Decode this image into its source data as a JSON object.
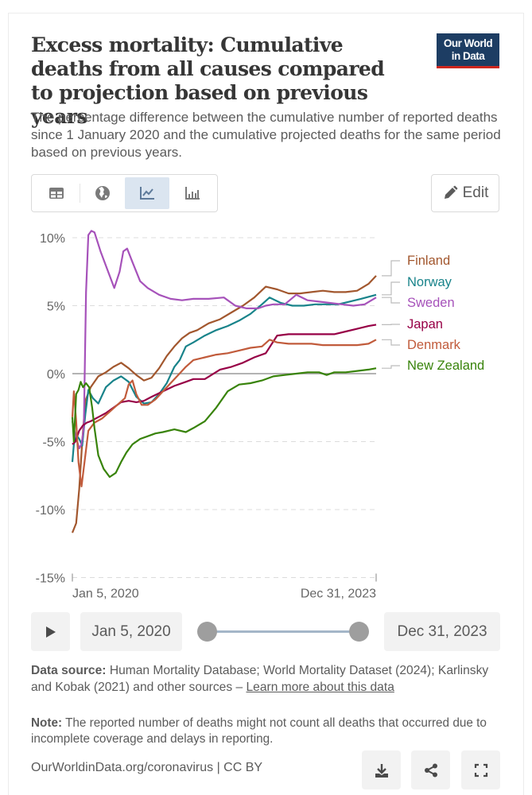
{
  "header": {
    "title": "Excess mortality: Cumulative deaths from all causes compared to projection based on previous years",
    "subtitle": "The percentage difference between the cumulative number of reported deaths since 1 January 2020 and the cumulative projected deaths for the same period based on previous years.",
    "logo_line1": "Our World",
    "logo_line2": "in Data"
  },
  "toolbar": {
    "tabs": [
      {
        "name": "table",
        "icon": "table-icon",
        "active": false
      },
      {
        "name": "map",
        "icon": "globe-icon",
        "active": false
      },
      {
        "name": "line-chart",
        "icon": "line-chart-icon",
        "active": true
      },
      {
        "name": "bar-chart",
        "icon": "bar-chart-icon",
        "active": false
      }
    ],
    "edit_label": "Edit"
  },
  "chart_data": {
    "type": "line",
    "title": "Excess mortality: Cumulative deaths from all causes compared to projection based on previous years",
    "xlabel": "",
    "ylabel": "",
    "x_tick_labels": [
      "Jan 5, 2020",
      "Dec 31, 2023"
    ],
    "x_range_years": [
      2020.01,
      2024.0
    ],
    "y_ticks": [
      -15,
      -10,
      -5,
      0,
      5,
      10
    ],
    "y_tick_labels": [
      "-15%",
      "-10%",
      "-5%",
      "0%",
      "5%",
      "10%"
    ],
    "ylim": [
      -15,
      10.5
    ],
    "grid": "horizontal dashed",
    "legend": "right",
    "series": [
      {
        "name": "Finland",
        "color": "#a2572e",
        "x": [
          2020.01,
          2020.06,
          2020.1,
          2020.14,
          2020.18,
          2020.25,
          2020.35,
          2020.45,
          2020.55,
          2020.65,
          2020.75,
          2020.85,
          2020.95,
          2021.05,
          2021.15,
          2021.25,
          2021.35,
          2021.45,
          2021.55,
          2021.65,
          2021.8,
          2021.95,
          2022.1,
          2022.25,
          2022.4,
          2022.55,
          2022.7,
          2022.85,
          2023.0,
          2023.15,
          2023.3,
          2023.45,
          2023.6,
          2023.75,
          2023.9,
          2024.0
        ],
        "y": [
          -11.7,
          -11.0,
          -8.5,
          -5.0,
          -2.0,
          -1.0,
          -0.2,
          0.1,
          0.5,
          0.8,
          0.4,
          -0.1,
          -0.5,
          -0.3,
          0.4,
          1.3,
          2.0,
          2.6,
          3.0,
          3.2,
          3.7,
          4.0,
          4.5,
          5.0,
          5.6,
          6.4,
          6.2,
          5.9,
          5.9,
          6.0,
          6.1,
          6.0,
          6.0,
          6.1,
          6.6,
          7.2
        ]
      },
      {
        "name": "Norway",
        "color": "#18838a",
        "x": [
          2020.01,
          2020.03,
          2020.06,
          2020.1,
          2020.14,
          2020.18,
          2020.22,
          2020.28,
          2020.35,
          2020.45,
          2020.55,
          2020.65,
          2020.75,
          2020.85,
          2020.95,
          2021.05,
          2021.15,
          2021.25,
          2021.35,
          2021.42,
          2021.5,
          2021.6,
          2021.75,
          2021.9,
          2022.05,
          2022.2,
          2022.35,
          2022.5,
          2022.6,
          2022.75,
          2022.9,
          2023.05,
          2023.2,
          2023.35,
          2023.5,
          2023.65,
          2023.8,
          2024.0
        ],
        "y": [
          -6.5,
          -5.2,
          -4.5,
          -4.8,
          -5.3,
          -3.0,
          -1.2,
          -1.8,
          -2.2,
          -1.0,
          -0.5,
          -0.2,
          -0.6,
          -1.7,
          -2.2,
          -2.1,
          -1.5,
          -0.7,
          0.5,
          1.0,
          2.0,
          2.3,
          2.8,
          3.2,
          3.5,
          3.9,
          4.4,
          5.1,
          5.6,
          5.2,
          5.0,
          5.0,
          5.1,
          5.1,
          5.1,
          5.3,
          5.5,
          5.8
        ]
      },
      {
        "name": "Sweden",
        "color": "#a652ba",
        "x": [
          2020.01,
          2020.05,
          2020.1,
          2020.13,
          2020.16,
          2020.19,
          2020.22,
          2020.26,
          2020.3,
          2020.38,
          2020.48,
          2020.56,
          2020.63,
          2020.68,
          2020.73,
          2020.8,
          2020.9,
          2021.0,
          2021.15,
          2021.3,
          2021.45,
          2021.6,
          2021.8,
          2022.0,
          2022.15,
          2022.3,
          2022.45,
          2022.55,
          2022.65,
          2022.8,
          2022.95,
          2023.1,
          2023.25,
          2023.4,
          2023.55,
          2023.7,
          2023.85,
          2024.0
        ],
        "y": [
          -3.5,
          -4.5,
          -5.5,
          -5.2,
          -4.0,
          6.0,
          10.2,
          10.5,
          10.4,
          9.0,
          7.5,
          6.3,
          7.5,
          9.0,
          9.2,
          8.2,
          6.8,
          6.3,
          5.8,
          5.5,
          5.4,
          5.5,
          5.5,
          5.6,
          5.0,
          4.8,
          4.8,
          5.0,
          5.1,
          5.1,
          5.8,
          5.4,
          5.3,
          5.2,
          5.1,
          5.0,
          5.1,
          5.6
        ]
      },
      {
        "name": "Japan",
        "color": "#970046",
        "x": [
          2020.01,
          2020.05,
          2020.1,
          2020.15,
          2020.2,
          2020.25,
          2020.35,
          2020.45,
          2020.55,
          2020.65,
          2020.75,
          2020.85,
          2020.95,
          2021.05,
          2021.2,
          2021.35,
          2021.5,
          2021.6,
          2021.75,
          2021.95,
          2022.1,
          2022.25,
          2022.4,
          2022.55,
          2022.7,
          2022.85,
          2023.0,
          2023.15,
          2023.3,
          2023.45,
          2023.6,
          2023.75,
          2023.9,
          2024.0
        ],
        "y": [
          -5.2,
          -5.0,
          -4.2,
          -3.8,
          -3.6,
          -3.5,
          -3.2,
          -2.9,
          -2.5,
          -2.1,
          -2.0,
          -2.1,
          -2.0,
          -1.7,
          -1.3,
          -0.9,
          -0.6,
          -0.4,
          -0.4,
          0.3,
          0.5,
          0.8,
          1.2,
          1.5,
          2.8,
          2.9,
          2.9,
          2.9,
          2.9,
          2.9,
          3.1,
          3.3,
          3.5,
          3.6
        ]
      },
      {
        "name": "Denmark",
        "color": "#c15b3b",
        "x": [
          2020.01,
          2020.03,
          2020.06,
          2020.09,
          2020.13,
          2020.17,
          2020.22,
          2020.3,
          2020.4,
          2020.5,
          2020.6,
          2020.7,
          2020.75,
          2020.8,
          2020.85,
          2020.92,
          2021.0,
          2021.1,
          2021.25,
          2021.4,
          2021.5,
          2021.6,
          2021.75,
          2021.9,
          2022.05,
          2022.2,
          2022.35,
          2022.5,
          2022.6,
          2022.7,
          2022.85,
          2023.0,
          2023.15,
          2023.3,
          2023.45,
          2023.6,
          2023.75,
          2023.9,
          2024.0
        ],
        "y": [
          -3.2,
          -1.3,
          -3.5,
          -6.5,
          -8.3,
          -6.5,
          -4.2,
          -3.6,
          -3.3,
          -2.8,
          -2.3,
          -1.8,
          -0.8,
          -0.5,
          -1.5,
          -2.3,
          -2.3,
          -1.9,
          -1.0,
          -0.1,
          0.5,
          1.0,
          1.2,
          1.4,
          1.5,
          1.7,
          1.9,
          2.0,
          2.5,
          2.3,
          2.2,
          2.2,
          2.2,
          2.1,
          2.1,
          2.1,
          2.1,
          2.2,
          2.5
        ]
      },
      {
        "name": "New Zealand",
        "color": "#38830a",
        "x": [
          2020.01,
          2020.03,
          2020.06,
          2020.09,
          2020.12,
          2020.15,
          2020.19,
          2020.23,
          2020.27,
          2020.3,
          2020.35,
          2020.42,
          2020.5,
          2020.58,
          2020.65,
          2020.72,
          2020.8,
          2020.9,
          2021.0,
          2021.1,
          2021.2,
          2021.35,
          2021.5,
          2021.6,
          2021.75,
          2021.9,
          2022.05,
          2022.2,
          2022.35,
          2022.5,
          2022.65,
          2022.8,
          2022.95,
          2023.1,
          2023.25,
          2023.35,
          2023.45,
          2023.6,
          2023.75,
          2023.9,
          2024.0
        ],
        "y": [
          -3.2,
          -5.0,
          -1.5,
          -1.2,
          -0.6,
          -1.0,
          -0.7,
          -1.0,
          -2.5,
          -4.0,
          -6.0,
          -7.0,
          -7.6,
          -7.3,
          -6.5,
          -5.8,
          -5.2,
          -4.8,
          -4.6,
          -4.4,
          -4.3,
          -4.1,
          -4.3,
          -4.0,
          -3.5,
          -2.5,
          -1.3,
          -0.8,
          -0.7,
          -0.5,
          -0.2,
          -0.1,
          0.0,
          0.1,
          0.1,
          -0.1,
          0.1,
          0.1,
          0.2,
          0.3,
          0.4
        ]
      }
    ]
  },
  "timeline": {
    "play_icon": "play-icon",
    "start_label": "Jan 5, 2020",
    "end_label": "Dec 31, 2023",
    "start_fraction": 0,
    "end_fraction": 1
  },
  "footer": {
    "source_label": "Data source:",
    "source_text": "Human Mortality Database; World Mortality Dataset (2024); Karlinsky and Kobak (2021) and other sources – ",
    "learn_more": "Learn more about this data",
    "note_label": "Note:",
    "note_text": "The reported number of deaths might not count all deaths that occurred due to incomplete coverage and delays in reporting.",
    "url": "OurWorldinData.org/coronavirus | CC BY",
    "actions": [
      "download-icon",
      "share-icon",
      "fullscreen-icon"
    ]
  }
}
